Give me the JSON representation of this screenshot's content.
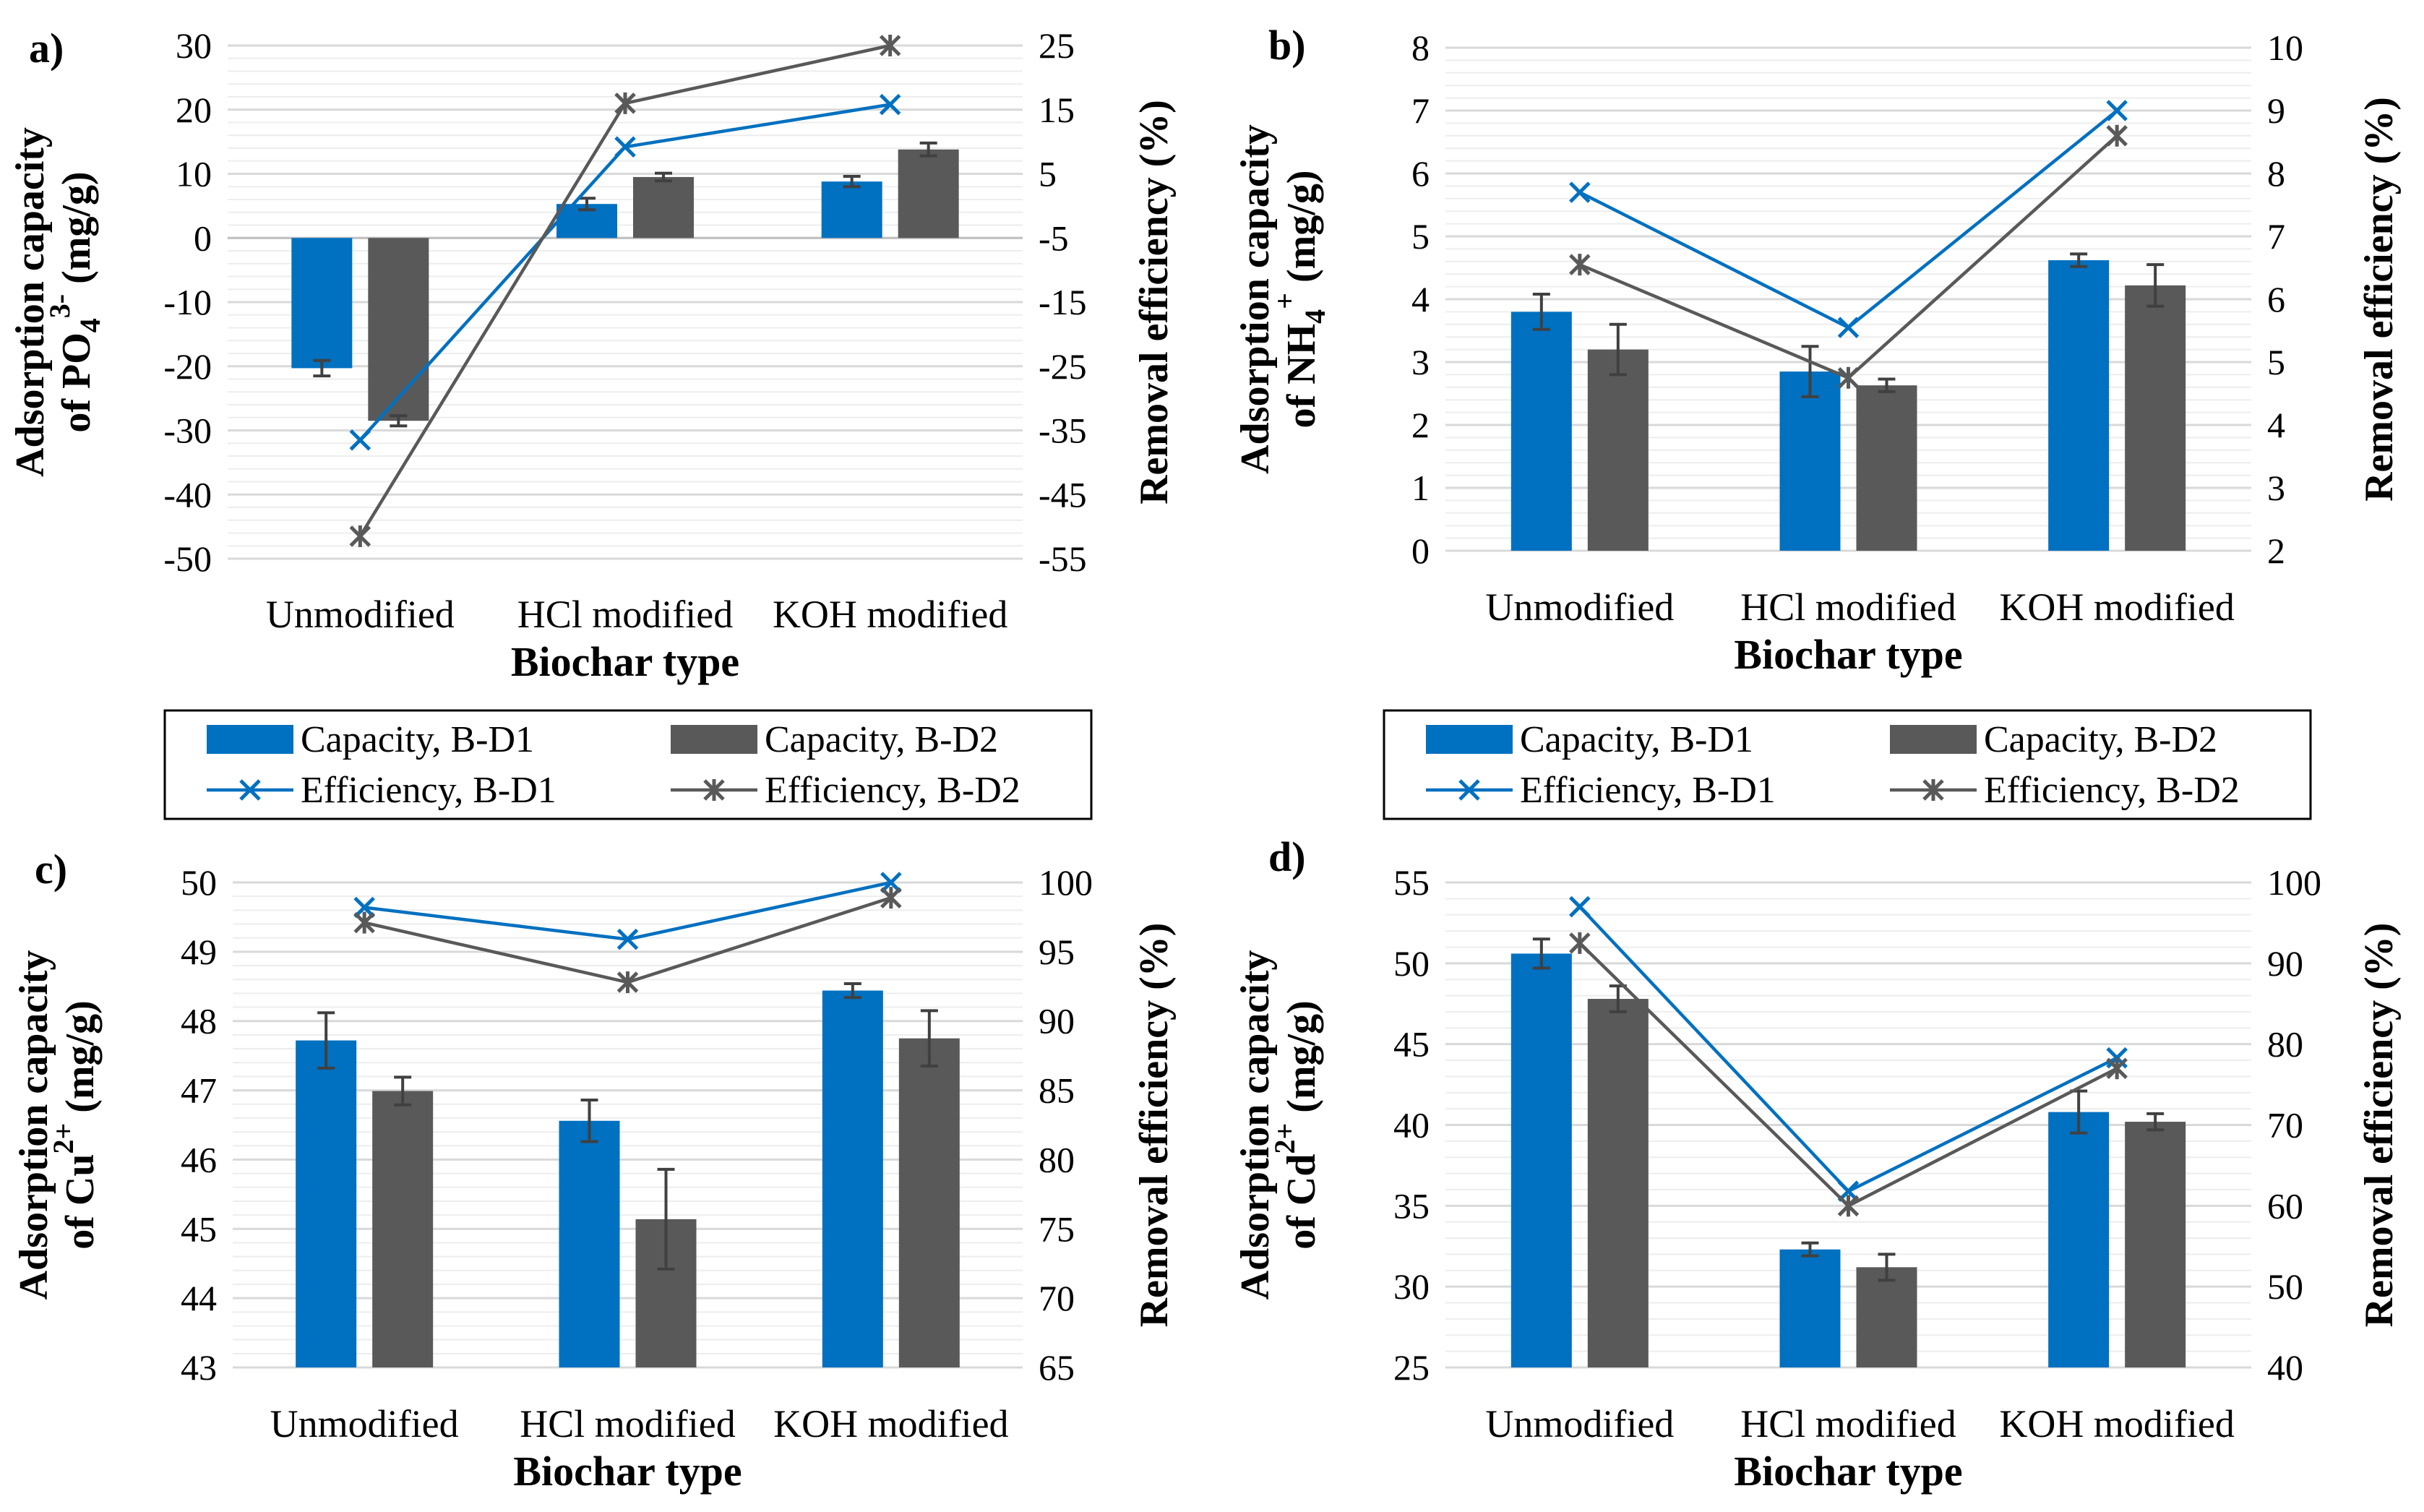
{
  "figure": {
    "legend": {
      "capacity_d1": "Capacity, B-D1",
      "capacity_d2": "Capacity, B-D2",
      "efficiency_d1": "Efficiency, B-D1",
      "efficiency_d2": "Efficiency, B-D2"
    },
    "colors": {
      "d1": "#0070C0",
      "d2": "#595959",
      "grid": "#D9D9D9",
      "err": "#404040"
    }
  },
  "chart_data": [
    {
      "type": "bar+line",
      "panel": "a)",
      "xlabel": "Biochar type",
      "ylabel_lines": [
        "Adsorption capacity",
        "of PO₄³⁻ (mg/g)"
      ],
      "ylabel_main": "Adsorption capacity",
      "ylabel_sub_pre": "of PO",
      "ylabel_sub_sub": "4",
      "ylabel_sub_sup": "3-",
      "ylabel_sub_post": " (mg/g)",
      "y2label": "Removal efficiency (%)",
      "categories": [
        "Unmodified",
        "HCl modified",
        "KOH modified"
      ],
      "ylim": [
        -50,
        30
      ],
      "yticks": [
        "-50",
        "-40",
        "-30",
        "-20",
        "-10",
        "0",
        "10",
        "20",
        "30"
      ],
      "y2lim": [
        -55,
        25
      ],
      "y2ticks": [
        "-55",
        "-45",
        "-35",
        "-25",
        "-15",
        "-5",
        "5",
        "15",
        "25"
      ],
      "capacity": [
        {
          "name": "Capacity, B-D1",
          "values": [
            -20.3,
            5.3,
            8.8
          ],
          "errors": [
            1.2,
            0.9,
            0.8
          ]
        },
        {
          "name": "Capacity, B-D2",
          "values": [
            -28.5,
            9.5,
            13.8
          ],
          "errors": [
            0.8,
            0.6,
            1.0
          ]
        }
      ],
      "efficiency": [
        {
          "name": "Efficiency, B-D1",
          "values": [
            -36.5,
            9.2,
            15.8
          ]
        },
        {
          "name": "Efficiency, B-D2",
          "values": [
            -51.5,
            16.0,
            25.0
          ]
        }
      ]
    },
    {
      "type": "bar+line",
      "panel": "b)",
      "xlabel": "Biochar type",
      "ylabel_lines": [
        "Adsorption capacity",
        "of NH₄⁺ (mg/g)"
      ],
      "ylabel_main": "Adsorption capacity",
      "ylabel_sub_pre": "of NH",
      "ylabel_sub_sub": "4",
      "ylabel_sub_sup": "+",
      "ylabel_sub_post": " (mg/g)",
      "y2label": "Removal efficiency (%)",
      "categories": [
        "Unmodified",
        "HCl modified",
        "KOH modified"
      ],
      "ylim": [
        0,
        8
      ],
      "yticks": [
        "0",
        "1",
        "2",
        "3",
        "4",
        "5",
        "6",
        "7",
        "8"
      ],
      "y2lim": [
        2,
        10
      ],
      "y2ticks": [
        "2",
        "3",
        "4",
        "5",
        "6",
        "7",
        "8",
        "9",
        "10"
      ],
      "capacity": [
        {
          "name": "Capacity, B-D1",
          "values": [
            3.8,
            2.85,
            4.62
          ],
          "errors": [
            0.28,
            0.4,
            0.1
          ]
        },
        {
          "name": "Capacity, B-D2",
          "values": [
            3.2,
            2.63,
            4.22
          ],
          "errors": [
            0.4,
            0.1,
            0.33
          ]
        }
      ],
      "efficiency": [
        {
          "name": "Efficiency, B-D1",
          "values": [
            7.7,
            5.55,
            9.0
          ]
        },
        {
          "name": "Efficiency, B-D2",
          "values": [
            6.55,
            4.75,
            8.6
          ]
        }
      ]
    },
    {
      "type": "bar+line",
      "panel": "c)",
      "xlabel": "Biochar type",
      "ylabel_lines": [
        "Adsorption capacity",
        "of Cu²⁺ (mg/g)"
      ],
      "ylabel_main": "Adsorption capacity",
      "ylabel_sub_pre": "of Cu",
      "ylabel_sub_sub": "",
      "ylabel_sub_sup": "2+",
      "ylabel_sub_post": " (mg/g)",
      "y2label": "Removal efficiency (%)",
      "categories": [
        "Unmodified",
        "HCl modified",
        "KOH modified"
      ],
      "ylim": [
        43,
        50
      ],
      "yticks": [
        "43",
        "44",
        "45",
        "46",
        "47",
        "48",
        "49",
        "50"
      ],
      "y2lim": [
        65,
        100
      ],
      "y2ticks": [
        "65",
        "70",
        "75",
        "80",
        "85",
        "90",
        "95",
        "100"
      ],
      "capacity": [
        {
          "name": "Capacity, B-D1",
          "values": [
            47.72,
            46.56,
            48.44
          ],
          "errors": [
            0.4,
            0.3,
            0.1
          ]
        },
        {
          "name": "Capacity, B-D2",
          "values": [
            46.99,
            45.14,
            47.75
          ],
          "errors": [
            0.2,
            0.72,
            0.4
          ]
        }
      ],
      "efficiency": [
        {
          "name": "Efficiency, B-D1",
          "values": [
            98.2,
            95.9,
            100.0
          ]
        },
        {
          "name": "Efficiency, B-D2",
          "values": [
            97.1,
            92.8,
            98.9
          ]
        }
      ]
    },
    {
      "type": "bar+line",
      "panel": "d)",
      "xlabel": "Biochar type",
      "ylabel_lines": [
        "Adsorption capacity",
        "of Cd²⁺ (mg/g)"
      ],
      "ylabel_main": "Adsorption capacity",
      "ylabel_sub_pre": "of Cd",
      "ylabel_sub_sub": "",
      "ylabel_sub_sup": "2+",
      "ylabel_sub_post": " (mg/g)",
      "y2label": "Removal efficiency (%)",
      "categories": [
        "Unmodified",
        "HCl modified",
        "KOH modified"
      ],
      "ylim": [
        25,
        55
      ],
      "yticks": [
        "25",
        "30",
        "35",
        "40",
        "45",
        "50",
        "55"
      ],
      "y2lim": [
        40,
        100
      ],
      "y2ticks": [
        "40",
        "50",
        "60",
        "70",
        "80",
        "90",
        "100"
      ],
      "capacity": [
        {
          "name": "Capacity, B-D1",
          "values": [
            50.6,
            32.3,
            40.8
          ],
          "errors": [
            0.9,
            0.4,
            1.3
          ]
        },
        {
          "name": "Capacity, B-D2",
          "values": [
            47.8,
            31.2,
            40.2
          ],
          "errors": [
            0.8,
            0.8,
            0.5
          ]
        }
      ],
      "efficiency": [
        {
          "name": "Efficiency, B-D1",
          "values": [
            97.0,
            61.8,
            78.3
          ]
        },
        {
          "name": "Efficiency, B-D2",
          "values": [
            92.5,
            60.0,
            77.0
          ]
        }
      ]
    }
  ]
}
